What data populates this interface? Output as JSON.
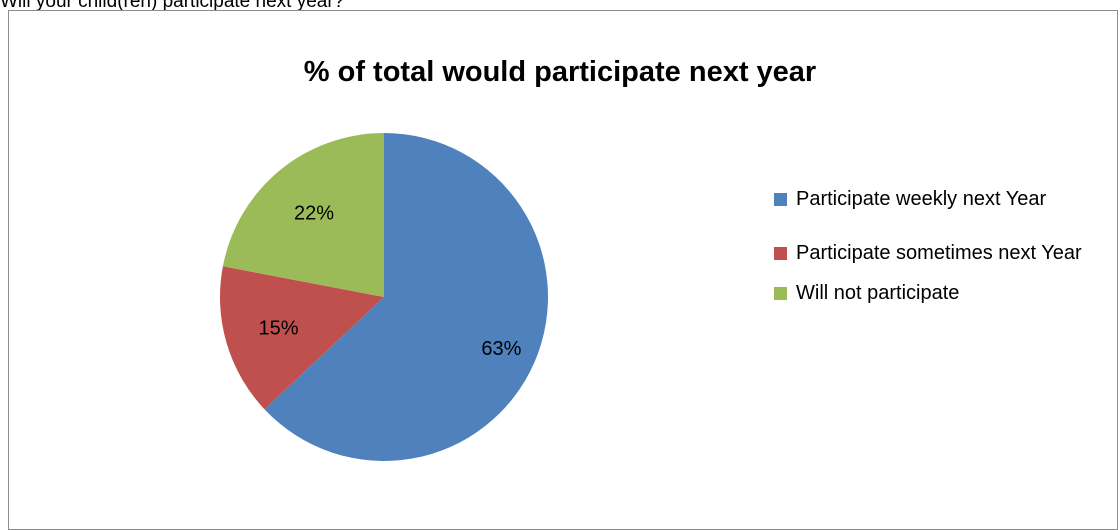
{
  "document": {
    "question": "Will your child(ren) participate next year?"
  },
  "chart_data": {
    "type": "pie",
    "title": "% of total would participate next year",
    "start_angle_deg": 0,
    "direction": "clockwise",
    "legend_position": "right",
    "slices": [
      {
        "label": "Participate weekly next Year",
        "value": 63,
        "value_label": "63%",
        "color": "#4f81bd"
      },
      {
        "label": "Participate sometimes next Year",
        "value": 15,
        "value_label": "15%",
        "color": "#c0504d"
      },
      {
        "label": "Will not participate",
        "value": 22,
        "value_label": "22%",
        "color": "#9bbb59"
      }
    ]
  }
}
